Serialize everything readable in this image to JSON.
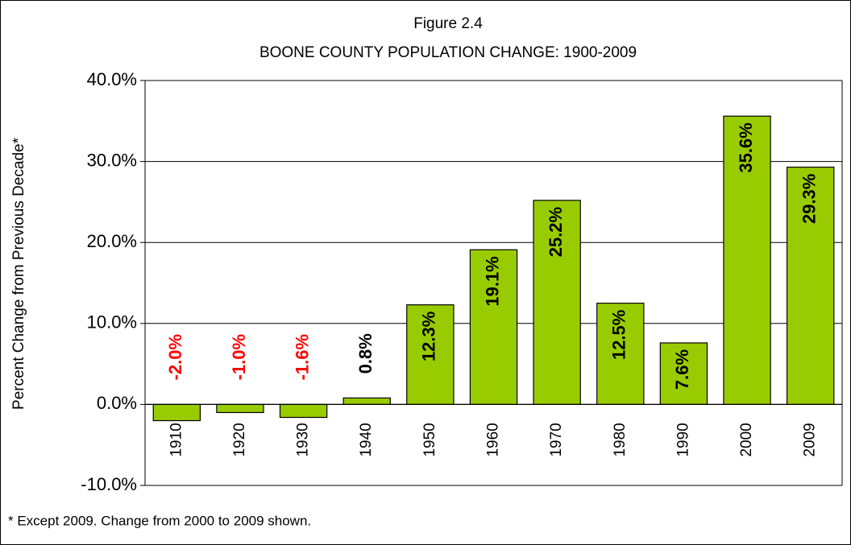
{
  "chart_data": {
    "type": "bar",
    "title": "Figure 2.4",
    "subtitle": "BOONE COUNTY POPULATION CHANGE:  1900-2009",
    "y_label": "Percent Change from Previous Decade*",
    "note": "* Except 2009.  Change from 2000 to 2009 shown.",
    "categories": [
      "1910",
      "1920",
      "1930",
      "1940",
      "1950",
      "1960",
      "1970",
      "1980",
      "1990",
      "2000",
      "2009"
    ],
    "values": [
      -2.0,
      -1.0,
      -1.6,
      0.8,
      12.3,
      19.1,
      25.2,
      12.5,
      7.6,
      35.6,
      29.3
    ],
    "value_labels": [
      "-2.0%",
      "-1.0%",
      "-1.6%",
      "0.8%",
      "12.3%",
      "19.1%",
      "25.2%",
      "12.5%",
      "7.6%",
      "35.6%",
      "29.3%"
    ],
    "color": "#99cc00",
    "negative_label_color": "#ff0000",
    "ylim": [
      -10,
      40
    ],
    "yticks": [
      {
        "value": -10,
        "label": "-10.0%"
      },
      {
        "value": 0,
        "label": "0.0%"
      },
      {
        "value": 10,
        "label": "10.0%"
      },
      {
        "value": 20,
        "label": "20.0%"
      },
      {
        "value": 30,
        "label": "30.0%"
      },
      {
        "value": 40,
        "label": "40.0%"
      }
    ],
    "grid": true
  }
}
